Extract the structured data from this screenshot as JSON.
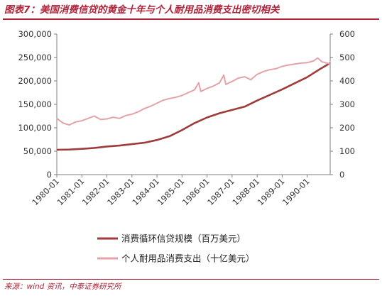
{
  "title": "图表7：美国消费信贷的黄金十年与个人耐用品消费支出密切相关",
  "source": "来源：wind 资讯，中泰证券研究所",
  "colors": {
    "accent": "#b0243a",
    "series_credit": "#9e3b3b",
    "series_durables": "#e3a3a8"
  },
  "chart_data": {
    "type": "line",
    "x_tick_labels": [
      "1980-01",
      "1981-01",
      "1982-01",
      "1983-01",
      "1984-01",
      "1985-01",
      "1986-01",
      "1987-01",
      "1988-01",
      "1989-01",
      "1990-01"
    ],
    "x_range": [
      "1980-01",
      "1990-12"
    ],
    "y_left": {
      "range": [
        0,
        300000
      ],
      "ticks": [
        "0",
        "50,000",
        "100,000",
        "150,000",
        "200,000",
        "250,000",
        "300,000"
      ]
    },
    "y_right": {
      "range": [
        0,
        600
      ],
      "ticks": [
        "0",
        "100",
        "200",
        "300",
        "400",
        "500",
        "600"
      ]
    },
    "grid": false,
    "legend": "bottom",
    "series": [
      {
        "name": "消费循环信贷规模（百万美元）",
        "axis": "left",
        "points": [
          [
            "1980-01",
            53000
          ],
          [
            "1980-07",
            53500
          ],
          [
            "1981-01",
            55000
          ],
          [
            "1981-07",
            57000
          ],
          [
            "1982-01",
            60000
          ],
          [
            "1982-07",
            62000
          ],
          [
            "1983-01",
            65000
          ],
          [
            "1983-07",
            68000
          ],
          [
            "1984-01",
            74000
          ],
          [
            "1984-07",
            82000
          ],
          [
            "1985-01",
            95000
          ],
          [
            "1985-07",
            110000
          ],
          [
            "1986-01",
            122000
          ],
          [
            "1986-07",
            131000
          ],
          [
            "1987-01",
            138000
          ],
          [
            "1987-07",
            145000
          ],
          [
            "1988-01",
            158000
          ],
          [
            "1988-07",
            170000
          ],
          [
            "1989-01",
            182000
          ],
          [
            "1989-07",
            195000
          ],
          [
            "1990-01",
            208000
          ],
          [
            "1990-07",
            225000
          ],
          [
            "1990-12",
            238000
          ]
        ]
      },
      {
        "name": "个人耐用品消费支出（十亿美元）",
        "axis": "right",
        "points": [
          [
            "1980-01",
            240
          ],
          [
            "1980-04",
            220
          ],
          [
            "1980-07",
            212
          ],
          [
            "1980-10",
            225
          ],
          [
            "1981-01",
            230
          ],
          [
            "1981-04",
            240
          ],
          [
            "1981-07",
            250
          ],
          [
            "1981-10",
            235
          ],
          [
            "1982-01",
            238
          ],
          [
            "1982-04",
            245
          ],
          [
            "1982-07",
            240
          ],
          [
            "1982-10",
            252
          ],
          [
            "1983-01",
            258
          ],
          [
            "1983-04",
            268
          ],
          [
            "1983-07",
            282
          ],
          [
            "1983-10",
            292
          ],
          [
            "1984-01",
            305
          ],
          [
            "1984-04",
            318
          ],
          [
            "1984-07",
            325
          ],
          [
            "1984-10",
            330
          ],
          [
            "1985-01",
            338
          ],
          [
            "1985-04",
            350
          ],
          [
            "1985-07",
            362
          ],
          [
            "1985-09",
            392
          ],
          [
            "1985-10",
            355
          ],
          [
            "1986-01",
            368
          ],
          [
            "1986-04",
            378
          ],
          [
            "1986-07",
            392
          ],
          [
            "1986-09",
            425
          ],
          [
            "1986-10",
            385
          ],
          [
            "1987-01",
            398
          ],
          [
            "1987-04",
            412
          ],
          [
            "1987-07",
            418
          ],
          [
            "1987-10",
            405
          ],
          [
            "1988-01",
            428
          ],
          [
            "1988-04",
            440
          ],
          [
            "1988-07",
            448
          ],
          [
            "1988-10",
            452
          ],
          [
            "1989-01",
            462
          ],
          [
            "1989-04",
            468
          ],
          [
            "1989-07",
            472
          ],
          [
            "1989-10",
            476
          ],
          [
            "1990-01",
            478
          ],
          [
            "1990-04",
            485
          ],
          [
            "1990-06",
            498
          ],
          [
            "1990-08",
            482
          ],
          [
            "1990-10",
            477
          ],
          [
            "1990-12",
            473
          ]
        ]
      }
    ]
  }
}
